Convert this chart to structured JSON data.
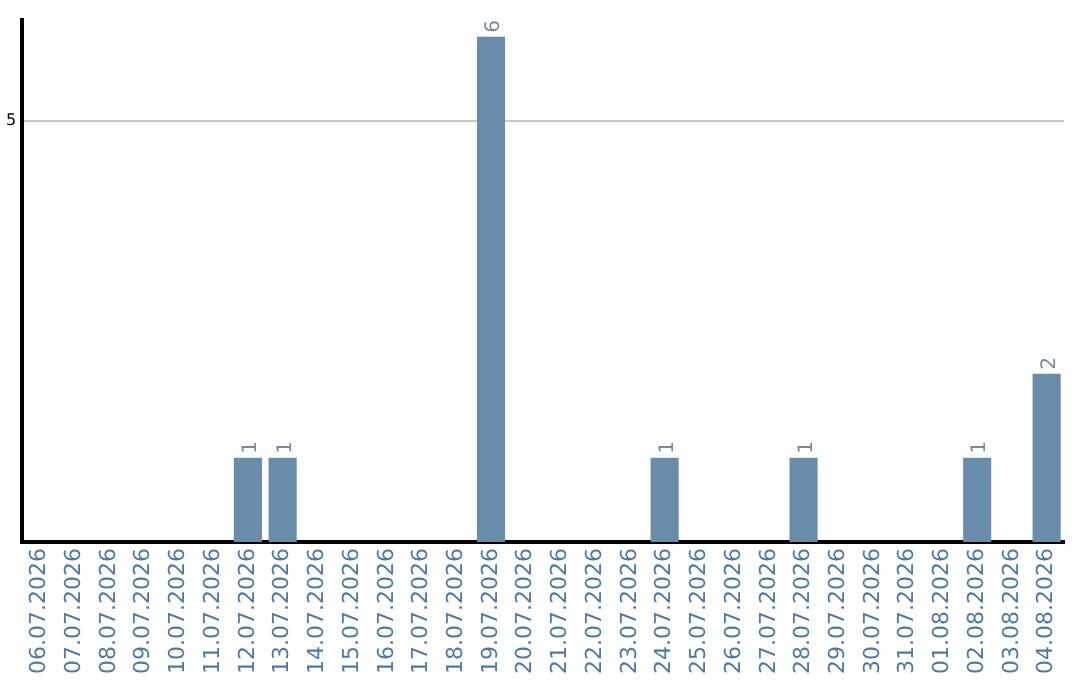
{
  "chart_data": {
    "type": "bar",
    "categories": [
      "06.07.2026",
      "07.07.2026",
      "08.07.2026",
      "09.07.2026",
      "10.07.2026",
      "11.07.2026",
      "12.07.2026",
      "13.07.2026",
      "14.07.2026",
      "15.07.2026",
      "16.07.2026",
      "17.07.2026",
      "18.07.2026",
      "19.07.2026",
      "20.07.2026",
      "21.07.2026",
      "22.07.2026",
      "23.07.2026",
      "24.07.2026",
      "25.07.2026",
      "26.07.2026",
      "27.07.2026",
      "28.07.2026",
      "29.07.2026",
      "30.07.2026",
      "31.07.2026",
      "01.08.2026",
      "02.08.2026",
      "03.08.2026",
      "04.08.2026"
    ],
    "values": [
      0,
      0,
      0,
      0,
      0,
      0,
      1,
      1,
      0,
      0,
      0,
      0,
      0,
      6,
      0,
      0,
      0,
      0,
      1,
      0,
      0,
      0,
      1,
      0,
      0,
      0,
      0,
      1,
      0,
      2
    ],
    "value_labels": [
      null,
      null,
      null,
      null,
      null,
      null,
      "1",
      "1",
      null,
      null,
      null,
      null,
      null,
      "6",
      null,
      null,
      null,
      null,
      "1",
      null,
      null,
      null,
      "1",
      null,
      null,
      null,
      null,
      "1",
      null,
      "2"
    ],
    "color": "#6a8cab",
    "ylim": [
      0,
      6.2
    ],
    "yticks": [
      5
    ],
    "grid": "y",
    "legend": false
  }
}
